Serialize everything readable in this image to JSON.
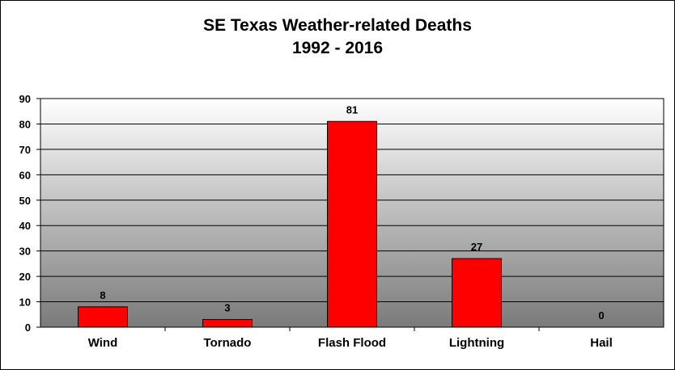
{
  "chart_data": {
    "type": "bar",
    "title": "SE Texas Weather-related Deaths",
    "subtitle": "1992 - 2016",
    "categories": [
      "Wind",
      "Tornado",
      "Flash Flood",
      "Lightning",
      "Hail"
    ],
    "values": [
      8,
      3,
      81,
      27,
      0
    ],
    "data_labels": [
      "8",
      "3",
      "81",
      "27",
      "0"
    ],
    "yticks": [
      "0",
      "10",
      "20",
      "30",
      "40",
      "50",
      "60",
      "70",
      "80",
      "90"
    ],
    "ylim": [
      0,
      90
    ],
    "ystep": 10,
    "grid": true,
    "legend": "none",
    "xlabel": "",
    "ylabel": "",
    "colors": {
      "bar": "#ff0000",
      "bar_border": "#000000",
      "plot_top": "#ffffff",
      "plot_bottom": "#7a7a7a",
      "grid": "#000000"
    }
  }
}
